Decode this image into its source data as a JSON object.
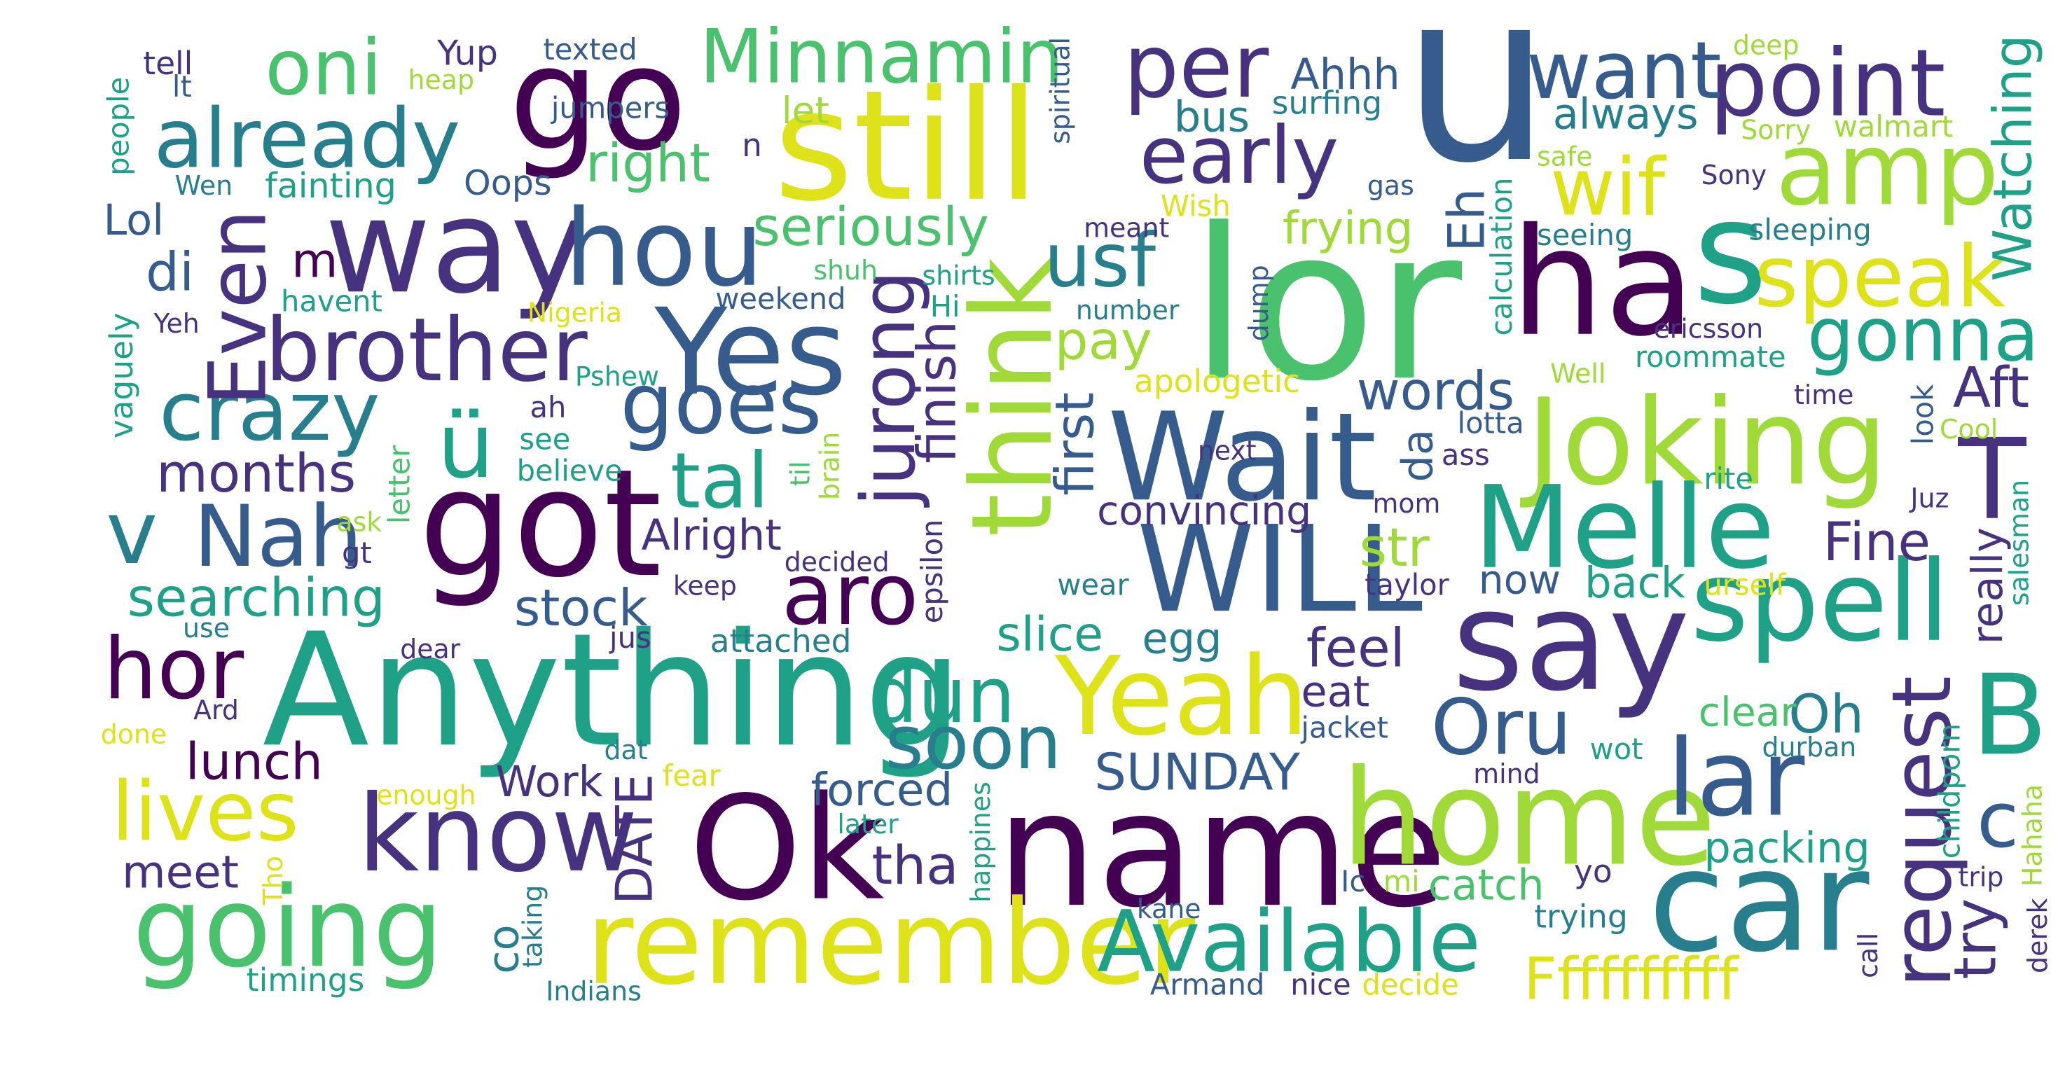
{
  "palette": {
    "a": "#440154",
    "b": "#46327e",
    "c": "#365c8d",
    "d": "#277f8e",
    "e": "#1fa187",
    "f": "#4ac16d",
    "g": "#a0da39",
    "h": "#dde318"
  },
  "words": [
    {
      "id": "u",
      "text": "u",
      "color": "c"
    },
    {
      "id": "lor",
      "text": "lor",
      "color": "f"
    },
    {
      "id": "name",
      "text": "name",
      "color": "a"
    },
    {
      "id": "Anything",
      "text": "Anything",
      "color": "e"
    },
    {
      "id": "still",
      "text": "still",
      "color": "h"
    },
    {
      "id": "way",
      "text": "way",
      "color": "b"
    },
    {
      "id": "got",
      "text": "got",
      "color": "a"
    },
    {
      "id": "Ok",
      "text": "Ok",
      "color": "a"
    },
    {
      "id": "go",
      "text": "go",
      "color": "a"
    },
    {
      "id": "hou",
      "text": "hou",
      "color": "c"
    },
    {
      "id": "Yes",
      "text": "Yes",
      "color": "c"
    },
    {
      "id": "remember",
      "text": "remember",
      "color": "h"
    },
    {
      "id": "car",
      "text": "car",
      "color": "d"
    },
    {
      "id": "home",
      "text": "home",
      "color": "g"
    },
    {
      "id": "say",
      "text": "say",
      "color": "b"
    },
    {
      "id": "ha",
      "text": "ha",
      "color": "a"
    },
    {
      "id": "s",
      "text": "s",
      "color": "e"
    },
    {
      "id": "think",
      "text": "think",
      "color": "g"
    },
    {
      "id": "Joking",
      "text": "Joking",
      "color": "g"
    },
    {
      "id": "Wait",
      "text": "Wait",
      "color": "c"
    },
    {
      "id": "WILL",
      "text": "WILL",
      "color": "c"
    },
    {
      "id": "Melle",
      "text": "Melle",
      "color": "e"
    },
    {
      "id": "spell",
      "text": "spell",
      "color": "e"
    },
    {
      "id": "going",
      "text": "going",
      "color": "f"
    },
    {
      "id": "know",
      "text": "know",
      "color": "b"
    },
    {
      "id": "Yeah",
      "text": "Yeah",
      "color": "h"
    },
    {
      "id": "Available",
      "text": "Available",
      "color": "e"
    },
    {
      "id": "lar",
      "text": "lar",
      "color": "c"
    },
    {
      "id": "B",
      "text": "B",
      "color": "e"
    },
    {
      "id": "T",
      "text": "T",
      "color": "b"
    },
    {
      "id": "amp",
      "text": "amp",
      "color": "g"
    },
    {
      "id": "point",
      "text": "point",
      "color": "b"
    },
    {
      "id": "want",
      "text": "want",
      "color": "c"
    },
    {
      "id": "per",
      "text": "per",
      "color": "b"
    },
    {
      "id": "early",
      "text": "early",
      "color": "b"
    },
    {
      "id": "already",
      "text": "already",
      "color": "d"
    },
    {
      "id": "oni",
      "text": "oni",
      "color": "f"
    },
    {
      "id": "Minnamin",
      "text": "Minnamin",
      "color": "f"
    },
    {
      "id": "brother",
      "text": "brother",
      "color": "b"
    },
    {
      "id": "crazy",
      "text": "crazy",
      "color": "d"
    },
    {
      "id": "goes",
      "text": "goes",
      "color": "c"
    },
    {
      "id": "Nah",
      "text": "Nah",
      "color": "c"
    },
    {
      "id": "hor",
      "text": "hor",
      "color": "a"
    },
    {
      "id": "lives",
      "text": "lives",
      "color": "h"
    },
    {
      "id": "Oru",
      "text": "Oru",
      "color": "c"
    },
    {
      "id": "dun",
      "text": "dun",
      "color": "e"
    },
    {
      "id": "soon",
      "text": "soon",
      "color": "d"
    },
    {
      "id": "aro",
      "text": "aro",
      "color": "a"
    },
    {
      "id": "speak",
      "text": "speak",
      "color": "h"
    },
    {
      "id": "gonna",
      "text": "gonna",
      "color": "e"
    },
    {
      "id": "wif",
      "text": "wif",
      "color": "h"
    },
    {
      "id": "usf",
      "text": "usf",
      "color": "d"
    },
    {
      "id": "request",
      "text": "request",
      "color": "b"
    },
    {
      "id": "Ffffffffff",
      "text": "Ffffffffff",
      "color": "h"
    },
    {
      "id": "c",
      "text": "c",
      "color": "c"
    },
    {
      "id": "u-umlaut",
      "text": "ü",
      "color": "e"
    },
    {
      "id": "v",
      "text": "v",
      "color": "d"
    },
    {
      "id": "Even",
      "text": "Even",
      "color": "b"
    },
    {
      "id": "jurong",
      "text": "jurong",
      "color": "b"
    },
    {
      "id": "finish",
      "text": "finish",
      "color": "b"
    },
    {
      "id": "tal",
      "text": "tal",
      "color": "e"
    },
    {
      "id": "months",
      "text": "months",
      "color": "b"
    },
    {
      "id": "searching",
      "text": "searching",
      "color": "e"
    },
    {
      "id": "stock",
      "text": "stock",
      "color": "c"
    },
    {
      "id": "lunch",
      "text": "lunch",
      "color": "a"
    },
    {
      "id": "SUNDAY",
      "text": "SUNDAY",
      "color": "c"
    },
    {
      "id": "tha",
      "text": "tha",
      "color": "b"
    },
    {
      "id": "forced",
      "text": "forced",
      "color": "c"
    },
    {
      "id": "DATE",
      "text": "DATE",
      "color": "b"
    },
    {
      "id": "seriously",
      "text": "seriously",
      "color": "f"
    },
    {
      "id": "right",
      "text": "right",
      "color": "f"
    },
    {
      "id": "Watching",
      "text": "Watching",
      "color": "e"
    },
    {
      "id": "Aft",
      "text": "Aft",
      "color": "b"
    },
    {
      "id": "words",
      "text": "words",
      "color": "c"
    },
    {
      "id": "pay",
      "text": "pay",
      "color": "g"
    },
    {
      "id": "first",
      "text": "first",
      "color": "c"
    },
    {
      "id": "Fine",
      "text": "Fine",
      "color": "b"
    },
    {
      "id": "try",
      "text": "try",
      "color": "b"
    },
    {
      "id": "Oh",
      "text": "Oh",
      "color": "d"
    },
    {
      "id": "str",
      "text": "str",
      "color": "g"
    },
    {
      "id": "feel",
      "text": "feel",
      "color": "b"
    },
    {
      "id": "slice",
      "text": "slice",
      "color": "e"
    },
    {
      "id": "meet",
      "text": "meet",
      "color": "b"
    },
    {
      "id": "di",
      "text": "di",
      "color": "c"
    },
    {
      "id": "m",
      "text": "m",
      "color": "a"
    },
    {
      "id": "Lol",
      "text": "Lol",
      "color": "c"
    },
    {
      "id": "bus",
      "text": "bus",
      "color": "d"
    },
    {
      "id": "Ahhh",
      "text": "Ahhh",
      "color": "c"
    },
    {
      "id": "always",
      "text": "always",
      "color": "d"
    },
    {
      "id": "frying",
      "text": "frying",
      "color": "g"
    },
    {
      "id": "Eh",
      "text": "Eh",
      "color": "c"
    },
    {
      "id": "convincing",
      "text": "convincing",
      "color": "b"
    },
    {
      "id": "Alright",
      "text": "Alright",
      "color": "b"
    },
    {
      "id": "back",
      "text": "back",
      "color": "e"
    },
    {
      "id": "now",
      "text": "now",
      "color": "c"
    },
    {
      "id": "da",
      "text": "da",
      "color": "c"
    },
    {
      "id": "eat",
      "text": "eat",
      "color": "b"
    },
    {
      "id": "egg",
      "text": "egg",
      "color": "d"
    },
    {
      "id": "really",
      "text": "really",
      "color": "b"
    },
    {
      "id": "packing",
      "text": "packing",
      "color": "e"
    },
    {
      "id": "clear",
      "text": "clear",
      "color": "f"
    },
    {
      "id": "catch",
      "text": "catch",
      "color": "f"
    },
    {
      "id": "Work",
      "text": "Work",
      "color": "b"
    },
    {
      "id": "co",
      "text": "co",
      "color": "d"
    },
    {
      "id": "timings",
      "text": "timings",
      "color": "e"
    },
    {
      "id": "apologetic",
      "text": "apologetic",
      "color": "h"
    },
    {
      "id": "fainting",
      "text": "fainting",
      "color": "e"
    },
    {
      "id": "Oops",
      "text": "Oops",
      "color": "c"
    },
    {
      "id": "tell",
      "text": "tell",
      "color": "b"
    },
    {
      "id": "Yup",
      "text": "Yup",
      "color": "b"
    },
    {
      "id": "texted",
      "text": "texted",
      "color": "c"
    },
    {
      "id": "heap",
      "text": "heap",
      "color": "g"
    },
    {
      "id": "lt",
      "text": "lt",
      "color": "c"
    },
    {
      "id": "jumpers",
      "text": "jumpers",
      "color": "c"
    },
    {
      "id": "let",
      "text": "let",
      "color": "g"
    },
    {
      "id": "surfing",
      "text": "surfing",
      "color": "d"
    },
    {
      "id": "spiritual",
      "text": "spiritual",
      "color": "c"
    },
    {
      "id": "deep",
      "text": "deep",
      "color": "g"
    },
    {
      "id": "Sorry",
      "text": "Sorry",
      "color": "g"
    },
    {
      "id": "walmart",
      "text": "walmart",
      "color": "g"
    },
    {
      "id": "safe",
      "text": "safe",
      "color": "g"
    },
    {
      "id": "Sony",
      "text": "Sony",
      "color": "b"
    },
    {
      "id": "gas",
      "text": "gas",
      "color": "c"
    },
    {
      "id": "Wish",
      "text": "Wish",
      "color": "h"
    },
    {
      "id": "meant",
      "text": "meant",
      "color": "b"
    },
    {
      "id": "n",
      "text": "n",
      "color": "b"
    },
    {
      "id": "Wen",
      "text": "Wen",
      "color": "d"
    },
    {
      "id": "people",
      "text": "people",
      "color": "e"
    },
    {
      "id": "seeing",
      "text": "seeing",
      "color": "d"
    },
    {
      "id": "sleeping",
      "text": "sleeping",
      "color": "d"
    },
    {
      "id": "calculation",
      "text": "calculation",
      "color": "e"
    },
    {
      "id": "ericsson",
      "text": "ericsson",
      "color": "b"
    },
    {
      "id": "shuh",
      "text": "shuh",
      "color": "f"
    },
    {
      "id": "shirts",
      "text": "shirts",
      "color": "e"
    },
    {
      "id": "weekend",
      "text": "weekend",
      "color": "c"
    },
    {
      "id": "Hi",
      "text": "Hi",
      "color": "e"
    },
    {
      "id": "number",
      "text": "number",
      "color": "d"
    },
    {
      "id": "dump",
      "text": "dump",
      "color": "c"
    },
    {
      "id": "havent",
      "text": "havent",
      "color": "e"
    },
    {
      "id": "Yeh",
      "text": "Yeh",
      "color": "b"
    },
    {
      "id": "Nigeria",
      "text": "Nigeria",
      "color": "h"
    },
    {
      "id": "Pshew",
      "text": "Pshew",
      "color": "e"
    },
    {
      "id": "roommate",
      "text": "roommate",
      "color": "e"
    },
    {
      "id": "Well",
      "text": "Well",
      "color": "g"
    },
    {
      "id": "look",
      "text": "look",
      "color": "c"
    },
    {
      "id": "time",
      "text": "time",
      "color": "b"
    },
    {
      "id": "Cool",
      "text": "Cool",
      "color": "g"
    },
    {
      "id": "vaguely",
      "text": "vaguely",
      "color": "e"
    },
    {
      "id": "ah",
      "text": "ah",
      "color": "b"
    },
    {
      "id": "see",
      "text": "see",
      "color": "e"
    },
    {
      "id": "believe",
      "text": "believe",
      "color": "e"
    },
    {
      "id": "letter",
      "text": "letter",
      "color": "f"
    },
    {
      "id": "til",
      "text": "til",
      "color": "f"
    },
    {
      "id": "brain",
      "text": "brain",
      "color": "g"
    },
    {
      "id": "next",
      "text": "next",
      "color": "b"
    },
    {
      "id": "lotta",
      "text": "lotta",
      "color": "c"
    },
    {
      "id": "ass",
      "text": "ass",
      "color": "b"
    },
    {
      "id": "mom",
      "text": "mom",
      "color": "b"
    },
    {
      "id": "rite",
      "text": "rite",
      "color": "e"
    },
    {
      "id": "Juz",
      "text": "Juz",
      "color": "b"
    },
    {
      "id": "salesman",
      "text": "salesman",
      "color": "e"
    },
    {
      "id": "ask",
      "text": "ask",
      "color": "g"
    },
    {
      "id": "gt",
      "text": "gt",
      "color": "b"
    },
    {
      "id": "decided",
      "text": "decided",
      "color": "b"
    },
    {
      "id": "epsilon",
      "text": "epsilon",
      "color": "b"
    },
    {
      "id": "wear",
      "text": "wear",
      "color": "d"
    },
    {
      "id": "taylor",
      "text": "taylor",
      "color": "b"
    },
    {
      "id": "urself",
      "text": "urself",
      "color": "h"
    },
    {
      "id": "keep",
      "text": "keep",
      "color": "b"
    },
    {
      "id": "use",
      "text": "use",
      "color": "d"
    },
    {
      "id": "jus",
      "text": "jus",
      "color": "b"
    },
    {
      "id": "attached",
      "text": "attached",
      "color": "d"
    },
    {
      "id": "dear",
      "text": "dear",
      "color": "b"
    },
    {
      "id": "Ard",
      "text": "Ard",
      "color": "b"
    },
    {
      "id": "done",
      "text": "done",
      "color": "h"
    },
    {
      "id": "dat",
      "text": "dat",
      "color": "d"
    },
    {
      "id": "jacket",
      "text": "jacket",
      "color": "c"
    },
    {
      "id": "wot",
      "text": "wot",
      "color": "e"
    },
    {
      "id": "durban",
      "text": "durban",
      "color": "d"
    },
    {
      "id": "mind",
      "text": "mind",
      "color": "b"
    },
    {
      "id": "childporn",
      "text": "childporn",
      "color": "e"
    },
    {
      "id": "Hahaha",
      "text": "Hahaha",
      "color": "g"
    },
    {
      "id": "fear",
      "text": "fear",
      "color": "h"
    },
    {
      "id": "enough",
      "text": "enough",
      "color": "h"
    },
    {
      "id": "later",
      "text": "later",
      "color": "e"
    },
    {
      "id": "happines",
      "text": "happines",
      "color": "e"
    },
    {
      "id": "Tho",
      "text": "Tho",
      "color": "h"
    },
    {
      "id": "taking",
      "text": "taking",
      "color": "d"
    },
    {
      "id": "Ic",
      "text": "Ic",
      "color": "c"
    },
    {
      "id": "mi",
      "text": "mi",
      "color": "g"
    },
    {
      "id": "kane",
      "text": "kane",
      "color": "c"
    },
    {
      "id": "yo",
      "text": "yo",
      "color": "b"
    },
    {
      "id": "trying",
      "text": "trying",
      "color": "d"
    },
    {
      "id": "trip",
      "text": "trip",
      "color": "b"
    },
    {
      "id": "derek",
      "text": "derek",
      "color": "b"
    },
    {
      "id": "call",
      "text": "call",
      "color": "b"
    },
    {
      "id": "Indians",
      "text": "Indians",
      "color": "d"
    },
    {
      "id": "Armand",
      "text": "Armand",
      "color": "c"
    },
    {
      "id": "nice",
      "text": "nice",
      "color": "b"
    },
    {
      "id": "decide",
      "text": "decide",
      "color": "h"
    }
  ]
}
